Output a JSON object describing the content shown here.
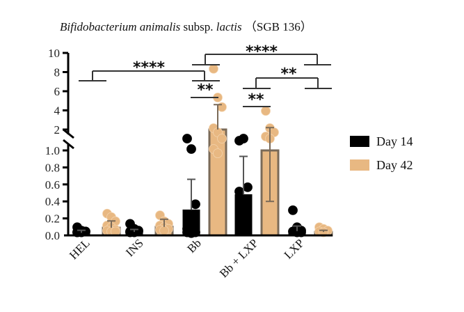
{
  "chart_data": {
    "type": "bar",
    "title_parts": [
      "Bifidobacterium animalis",
      "subsp.",
      "lactis",
      "（SGB 136）"
    ],
    "categories": [
      "HEL",
      "INS",
      "Bb",
      "Bb + LXP",
      "LXP"
    ],
    "y_axis": {
      "broken": true,
      "lower_range": [
        0,
        1.0
      ],
      "lower_ticks": [
        "0.0",
        "0.2",
        "0.4",
        "0.6",
        "0.8",
        "1.0"
      ],
      "upper_range": [
        2,
        10
      ],
      "upper_ticks": [
        "2",
        "4",
        "6",
        "8",
        "10"
      ]
    },
    "series": [
      {
        "name": "Day 14",
        "color": "#000000",
        "values": [
          0.03,
          0.04,
          0.3,
          0.48,
          0.05
        ],
        "error_upper": [
          0.06,
          0.07,
          0.66,
          0.93,
          0.11
        ],
        "points": [
          [
            0.08,
            0.04,
            0.03,
            0.02,
            0.02,
            0.03,
            0.02
          ],
          [
            0.12,
            0.06,
            0.03,
            0.02,
            0.02,
            0.04,
            0.03
          ],
          [
            1.5,
            1.0,
            0.35,
            0.06,
            0.03,
            0.02,
            0.02,
            0.01
          ],
          [
            1.4,
            1.5,
            0.55,
            0.5
          ],
          [
            0.28,
            0.08,
            0.04,
            0.03,
            0.02,
            0.02
          ]
        ]
      },
      {
        "name": "Day 42",
        "color": "#E8B882",
        "values": [
          0.09,
          0.1,
          2.0,
          1.0,
          0.04
        ],
        "error_upper": [
          0.17,
          0.19,
          4.6,
          2.2,
          0.06
        ],
        "error_lower": [
          null,
          null,
          null,
          0.4,
          null
        ],
        "points": [
          [
            0.24,
            0.2,
            0.15,
            0.1,
            0.08,
            0.05,
            0.04,
            0.03,
            0.03
          ],
          [
            0.22,
            0.15,
            0.12,
            0.1,
            0.08,
            0.06,
            0.05,
            0.04
          ],
          [
            8.2,
            5.2,
            4.2,
            2.0,
            1.8,
            1.5,
            1.0,
            0.95
          ],
          [
            3.8,
            2.0,
            1.8,
            1.6,
            1.5
          ],
          [
            0.08,
            0.06,
            0.04,
            0.03,
            0.02
          ]
        ]
      }
    ],
    "significance": [
      {
        "from": "HEL",
        "to": "Bb",
        "label": "****"
      },
      {
        "from": "Bb",
        "to": "LXP",
        "label": "****"
      },
      {
        "from": "Bb",
        "to": "Bb",
        "label": "**"
      },
      {
        "from": "Bb + LXP",
        "to": "LXP",
        "label": "**"
      },
      {
        "from": "Bb + LXP",
        "to": "Bb + LXP",
        "label": "**"
      }
    ],
    "legend": [
      "Day 14",
      "Day 42"
    ],
    "legend_position": "right",
    "grid": false
  }
}
